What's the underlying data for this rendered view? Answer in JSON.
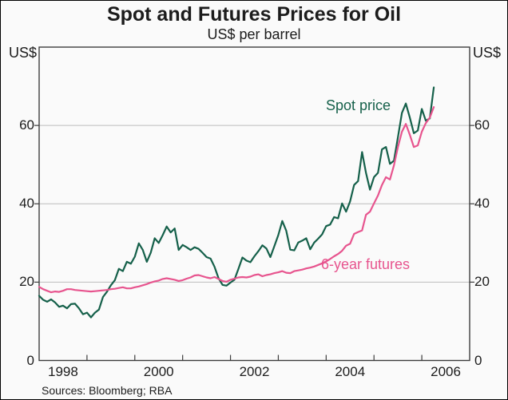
{
  "chart_data": {
    "type": "line",
    "title": "Spot and Futures Prices for Oil",
    "subtitle": "US$ per barrel",
    "source": "Sources: Bloomberg; RBA",
    "grid": true,
    "legend_position": "inline-labels",
    "y_axis": {
      "unit_left": "US$",
      "unit_right": "US$",
      "min": 0,
      "max": 80,
      "tick_values": [
        0,
        20,
        40,
        60
      ],
      "gridlines": [
        20,
        40,
        60
      ]
    },
    "x_axis": {
      "start_year": 1998,
      "end_year": 2007,
      "tick_years": [
        1999,
        2000,
        2001,
        2002,
        2003,
        2004,
        2005,
        2006
      ],
      "labels": [
        {
          "text": "1998",
          "center_year": 1998.5
        },
        {
          "text": "2000",
          "center_year": 2000.5
        },
        {
          "text": "2002",
          "center_year": 2002.5
        },
        {
          "text": "2004",
          "center_year": 2004.5
        },
        {
          "text": "2006",
          "center_year": 2006.5
        }
      ]
    },
    "series": [
      {
        "name": "Spot price",
        "color": "#15604a",
        "start": "1998-01",
        "frequency": "monthly",
        "values": [
          16.5,
          15.5,
          15.0,
          15.6,
          14.8,
          13.7,
          14.0,
          13.3,
          14.4,
          14.5,
          13.3,
          11.8,
          12.2,
          11.0,
          12.2,
          13.0,
          16.2,
          17.5,
          19.2,
          20.5,
          23.4,
          22.8,
          25.2,
          24.7,
          26.5,
          29.9,
          28.2,
          25.2,
          27.5,
          31.2,
          30.0,
          32.0,
          34.2,
          32.7,
          33.7,
          28.2,
          29.5,
          28.9,
          28.2,
          28.9,
          28.5,
          27.5,
          26.4,
          26.0,
          23.9,
          21.0,
          19.3,
          19.1,
          19.9,
          20.6,
          23.4,
          26.3,
          25.5,
          25.1,
          26.6,
          27.9,
          29.4,
          28.6,
          26.4,
          29.2,
          32.0,
          35.6,
          33.1,
          28.3,
          28.1,
          30.1,
          30.6,
          31.2,
          28.4,
          30.1,
          31.1,
          32.2,
          34.3,
          34.7,
          36.6,
          36.3,
          40.1,
          38.0,
          40.6,
          44.8,
          45.8,
          53.2,
          47.9,
          43.6,
          46.8,
          47.9,
          53.9,
          54.5,
          50.2,
          51.0,
          57.0,
          63.2,
          65.6,
          62.0,
          58.0,
          58.7,
          64.2,
          61.2,
          61.8,
          69.7
        ]
      },
      {
        "name": "6-year futures",
        "color": "#e7548e",
        "start": "1998-01",
        "frequency": "monthly",
        "values": [
          18.8,
          18.2,
          17.8,
          17.4,
          17.6,
          17.5,
          17.8,
          18.2,
          18.2,
          18.0,
          17.9,
          17.8,
          17.7,
          17.6,
          17.7,
          17.8,
          17.9,
          18.0,
          18.2,
          18.3,
          18.5,
          18.7,
          18.4,
          18.4,
          18.7,
          18.9,
          19.2,
          19.5,
          19.9,
          20.2,
          20.4,
          20.8,
          21.0,
          20.8,
          20.6,
          20.3,
          20.5,
          20.9,
          21.2,
          21.7,
          21.8,
          21.5,
          21.2,
          21.0,
          21.3,
          20.8,
          20.3,
          20.1,
          20.6,
          20.9,
          21.2,
          21.3,
          21.2,
          21.4,
          21.8,
          22.0,
          21.5,
          21.8,
          22.0,
          22.3,
          22.5,
          22.8,
          22.4,
          22.3,
          22.8,
          23.0,
          23.2,
          23.5,
          23.7,
          24.0,
          24.4,
          24.8,
          25.3,
          25.9,
          26.6,
          27.2,
          28.0,
          29.3,
          29.8,
          32.3,
          32.8,
          33.2,
          37.2,
          38.0,
          40.1,
          42.1,
          44.8,
          46.8,
          46.2,
          49.8,
          54.5,
          58.4,
          60.4,
          57.6,
          54.5,
          54.9,
          58.4,
          60.6,
          62.0,
          64.7
        ]
      }
    ]
  }
}
